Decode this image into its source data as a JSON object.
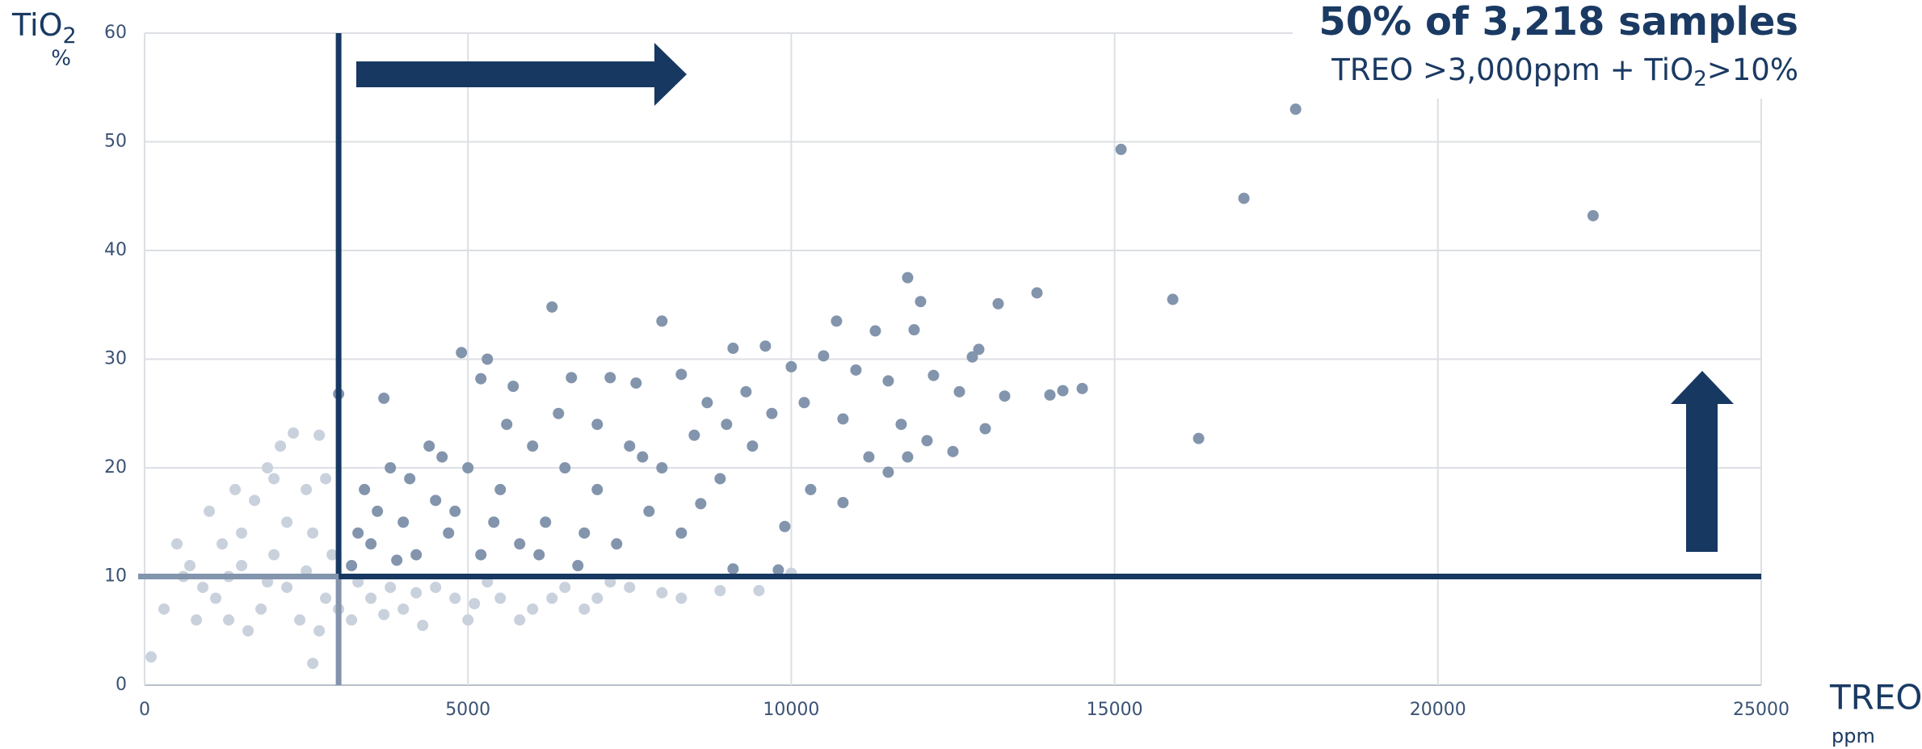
{
  "chart_data": {
    "type": "scatter",
    "title": "50% of 3,218 samples",
    "subtitle": {
      "text": "TREO >3,000ppm + TiO",
      "sub": "2",
      "tail": ">10%"
    },
    "x_label": {
      "text": "TREO",
      "unit": "ppm"
    },
    "y_label": {
      "text": "TiO",
      "sub": "2",
      "unit": "%"
    },
    "xlim": [
      0,
      25000
    ],
    "xticks": [
      0,
      5000,
      10000,
      15000,
      20000,
      25000
    ],
    "ylim": [
      0,
      60
    ],
    "yticks": [
      0,
      10,
      20,
      30,
      40,
      50,
      60
    ],
    "grid": true,
    "thresholds": {
      "x": 3000,
      "y": 10,
      "color": "#173861"
    },
    "series": [
      {
        "color": "#c9d1dc",
        "x": [
          100,
          2600,
          300,
          500,
          700,
          900,
          1100,
          1300,
          1500,
          1700,
          1900,
          2100,
          2300,
          2700,
          2500,
          2200,
          2000,
          1800,
          1600,
          2400,
          2800,
          2900,
          1200,
          800,
          1400,
          2600,
          3500,
          4000,
          4500,
          5000,
          5500,
          6000,
          6500,
          7000,
          7500,
          8000,
          8300,
          8900,
          9500,
          10000,
          3200,
          3800,
          4300,
          4800,
          5300,
          5800,
          6300,
          6800,
          7200,
          1000,
          600,
          2000,
          2800,
          1500,
          2200,
          2700,
          3000,
          3300,
          3700,
          1300,
          1900,
          2500,
          4200,
          5100
        ],
        "values": [
          2.6,
          2,
          7,
          13,
          11,
          9,
          8,
          10,
          14,
          17,
          20,
          22,
          23.2,
          23,
          18,
          15,
          12,
          7,
          5,
          6,
          8,
          12,
          13,
          6,
          18,
          14,
          8,
          7,
          9,
          6,
          8,
          7,
          9,
          8,
          9,
          8.5,
          8,
          8.7,
          8.7,
          10.3,
          6,
          9,
          5.5,
          8,
          9.5,
          6,
          8,
          7,
          9.5,
          16,
          10,
          19,
          19,
          11,
          9,
          5,
          7,
          9.5,
          6.5,
          6,
          9.5,
          10.5,
          8.5,
          7.5
        ]
      },
      {
        "color": "#8394ad",
        "x": [
          17800,
          15100,
          17000,
          22400,
          15900,
          16300,
          13800,
          13200,
          11800,
          12000,
          14500,
          14200,
          14000,
          13300,
          12900,
          12800,
          13000,
          12500,
          11900,
          11300,
          10700,
          8000,
          6300,
          4900,
          5300,
          5700,
          5200,
          3700,
          3000,
          6600,
          7200,
          7600,
          8300,
          9100,
          9600,
          10000,
          10500,
          11000,
          11500,
          12200,
          12600,
          10800,
          11700,
          12100,
          11200,
          11500,
          11800,
          10800,
          10300,
          9900,
          9800,
          9100,
          8600,
          8900,
          9400,
          9700,
          9000,
          8500,
          8000,
          7500,
          7000,
          6500,
          6000,
          5500,
          5000,
          4500,
          4000,
          3500,
          3200,
          3400,
          3800,
          4200,
          4700,
          5200,
          5800,
          6200,
          6800,
          7300,
          7800,
          8300,
          4400,
          5600,
          6400,
          7000,
          7700,
          8700,
          9300,
          10200,
          3600,
          3300,
          4100,
          4800,
          5400,
          6100,
          6700,
          3900,
          4600
        ],
        "values": [
          53,
          49.3,
          44.8,
          43.2,
          35.5,
          22.7,
          36.1,
          35.1,
          37.5,
          35.3,
          27.3,
          27.1,
          26.7,
          26.6,
          30.9,
          30.2,
          23.6,
          21.5,
          32.7,
          32.6,
          33.5,
          33.5,
          34.8,
          30.6,
          30,
          27.5,
          28.2,
          26.4,
          26.8,
          28.3,
          28.3,
          27.8,
          28.6,
          31,
          31.2,
          29.3,
          30.3,
          29,
          28,
          28.5,
          27,
          24.5,
          24,
          22.5,
          21,
          19.6,
          21,
          16.8,
          18,
          14.6,
          10.6,
          10.7,
          16.7,
          19,
          22,
          25,
          24,
          23,
          20,
          22,
          18,
          20,
          22,
          18,
          20,
          17,
          15,
          13,
          11,
          18,
          20,
          12,
          14,
          12,
          13,
          15,
          14,
          13,
          16,
          14,
          22,
          24,
          25,
          24,
          21,
          26,
          27,
          26,
          16,
          14,
          19,
          16,
          15,
          12,
          11,
          11.5,
          21
        ]
      }
    ]
  }
}
